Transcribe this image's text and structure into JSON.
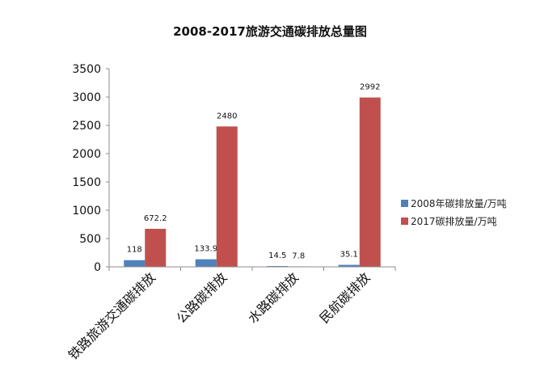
{
  "chart_data": {
    "type": "bar",
    "title": "2008-2017旅游交通碳排放总量图",
    "categories": [
      "铁路旅游交通碳排放",
      "公路碳排放",
      "水路碳排放",
      "民航碳排放"
    ],
    "series": [
      {
        "name": "2008年碳排放量/万吨",
        "color": "#4f81bd",
        "values": [
          118,
          133.9,
          14.5,
          35.1
        ],
        "labels": [
          "118",
          "133.9",
          "14.5",
          "35.1"
        ]
      },
      {
        "name": "2017碳排放量/万吨",
        "color": "#c0504d",
        "values": [
          672.2,
          2480,
          7.8,
          2992
        ],
        "labels": [
          "672.2",
          "2480",
          "7.8",
          "2992"
        ]
      }
    ],
    "yticks": [
      "0",
      "500",
      "1000",
      "1500",
      "2000",
      "2500",
      "3000",
      "3500"
    ],
    "ylim": [
      0,
      3500
    ],
    "grid": false,
    "legend_position": "right"
  }
}
